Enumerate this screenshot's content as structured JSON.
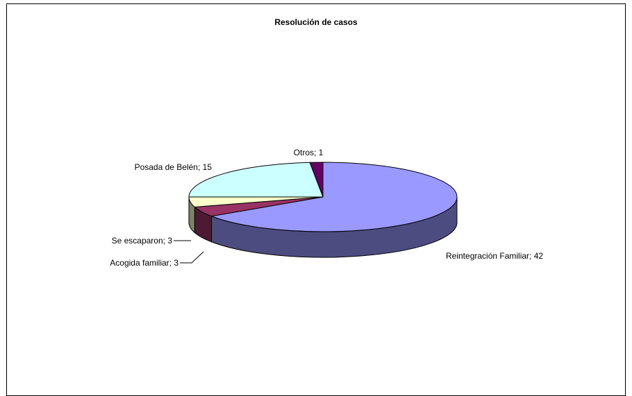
{
  "chart_data": {
    "type": "pie",
    "title": "Resolución de casos",
    "style": "3d",
    "slices": [
      {
        "name": "Reintegración Familiar",
        "value": 42,
        "label": "Reintegración Familiar; 42",
        "color": "#9999ff",
        "side_color": "#4c4c80"
      },
      {
        "name": "Acogida familiar",
        "value": 3,
        "label": "Acogida familiar; 3",
        "color": "#993366",
        "side_color": "#4d1a33"
      },
      {
        "name": "Se escaparon",
        "value": 3,
        "label": "Se escaparon; 3",
        "color": "#ffffcc",
        "side_color": "#808066"
      },
      {
        "name": "Posada de Belén",
        "value": 15,
        "label": "Posada de Belén; 15",
        "color": "#ccffff",
        "side_color": "#668080"
      },
      {
        "name": "Otros",
        "value": 1,
        "label": "Otros; 1",
        "color": "#660066",
        "side_color": "#330033"
      }
    ]
  }
}
